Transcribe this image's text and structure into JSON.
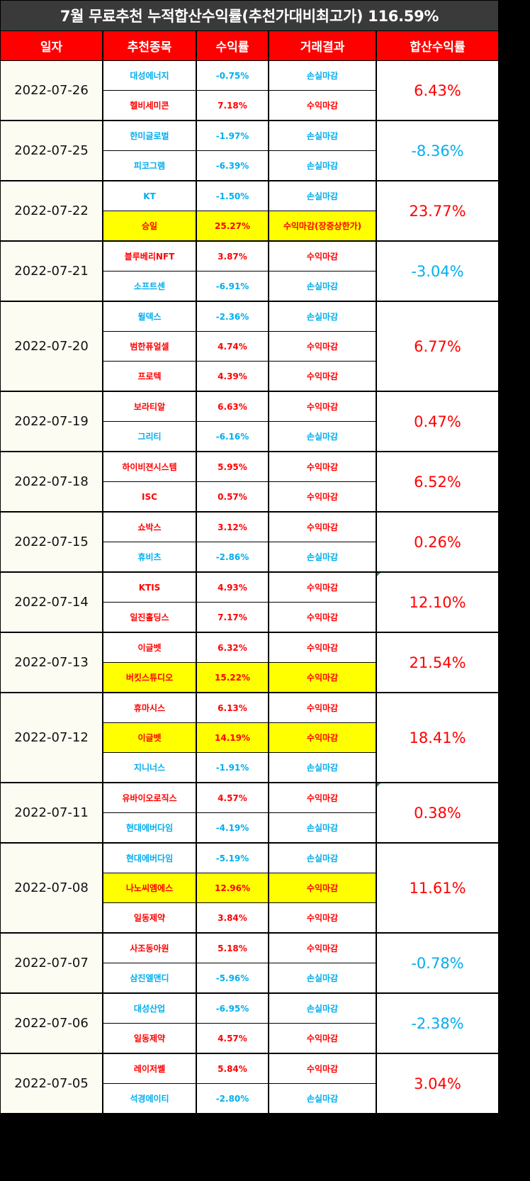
{
  "title": "7월 무료추천 누적합산수익률(추천가대비최고가) 116.59%",
  "headers": [
    "일자",
    "추천종목",
    "수익률",
    "거래결과",
    "합산수익률"
  ],
  "colors": {
    "positive": "#ff0000",
    "negative": "#00aeef",
    "header": "#ff0000",
    "highlight": "#ffff00"
  },
  "groups": [
    {
      "date": "2022-07-26",
      "sum": "6.43%",
      "sum_sign": "pos",
      "rows": [
        {
          "stock": "대성에너지",
          "ret": "-0.75%",
          "result": "손실마감",
          "sign": "neg"
        },
        {
          "stock": "헬비세미콘",
          "ret": "7.18%",
          "result": "수익마감",
          "sign": "pos"
        }
      ]
    },
    {
      "date": "2022-07-25",
      "sum": "-8.36%",
      "sum_sign": "neg",
      "rows": [
        {
          "stock": "한미글로벌",
          "ret": "-1.97%",
          "result": "손실마감",
          "sign": "neg"
        },
        {
          "stock": "피코그램",
          "ret": "-6.39%",
          "result": "손실마감",
          "sign": "neg"
        }
      ]
    },
    {
      "date": "2022-07-22",
      "sum": "23.77%",
      "sum_sign": "pos",
      "rows": [
        {
          "stock": "KT",
          "ret": "-1.50%",
          "result": "손실마감",
          "sign": "neg"
        },
        {
          "stock": "승일",
          "ret": "25.27%",
          "result": "수익마감(장중상한가)",
          "sign": "pos",
          "hl": true
        }
      ]
    },
    {
      "date": "2022-07-21",
      "sum": "-3.04%",
      "sum_sign": "neg",
      "rows": [
        {
          "stock": "블루베리NFT",
          "ret": "3.87%",
          "result": "수익마감",
          "sign": "pos"
        },
        {
          "stock": "소프트센",
          "ret": "-6.91%",
          "result": "손실마감",
          "sign": "neg"
        }
      ]
    },
    {
      "date": "2022-07-20",
      "sum": "6.77%",
      "sum_sign": "pos",
      "rows": [
        {
          "stock": "윌덱스",
          "ret": "-2.36%",
          "result": "손실마감",
          "sign": "neg"
        },
        {
          "stock": "범한퓨얼셀",
          "ret": "4.74%",
          "result": "수익마감",
          "sign": "pos"
        },
        {
          "stock": "프로텍",
          "ret": "4.39%",
          "result": "수익마감",
          "sign": "pos"
        }
      ]
    },
    {
      "date": "2022-07-19",
      "sum": "0.47%",
      "sum_sign": "pos",
      "rows": [
        {
          "stock": "보라티알",
          "ret": "6.63%",
          "result": "수익마감",
          "sign": "pos"
        },
        {
          "stock": "그리티",
          "ret": "-6.16%",
          "result": "손실마감",
          "sign": "neg"
        }
      ]
    },
    {
      "date": "2022-07-18",
      "sum": "6.52%",
      "sum_sign": "pos",
      "rows": [
        {
          "stock": "하이비젼시스템",
          "ret": "5.95%",
          "result": "수익마감",
          "sign": "pos"
        },
        {
          "stock": "ISC",
          "ret": "0.57%",
          "result": "수익마감",
          "sign": "pos"
        }
      ]
    },
    {
      "date": "2022-07-15",
      "sum": "0.26%",
      "sum_sign": "pos",
      "rows": [
        {
          "stock": "쇼박스",
          "ret": "3.12%",
          "result": "수익마감",
          "sign": "pos"
        },
        {
          "stock": "휴비츠",
          "ret": "-2.86%",
          "result": "손실마감",
          "sign": "neg"
        }
      ]
    },
    {
      "date": "2022-07-14",
      "sum": "12.10%",
      "sum_sign": "pos",
      "rows": [
        {
          "stock": "KTIS",
          "ret": "4.93%",
          "result": "수익마감",
          "sign": "pos"
        },
        {
          "stock": "일진홀딩스",
          "ret": "7.17%",
          "result": "수익마감",
          "sign": "pos"
        }
      ]
    },
    {
      "date": "2022-07-13",
      "sum": "21.54%",
      "sum_sign": "pos",
      "rows": [
        {
          "stock": "이글벳",
          "ret": "6.32%",
          "result": "수익마감",
          "sign": "pos"
        },
        {
          "stock": "버킷스튜디오",
          "ret": "15.22%",
          "result": "수익마감",
          "sign": "pos",
          "hl": true
        }
      ]
    },
    {
      "date": "2022-07-12",
      "sum": "18.41%",
      "sum_sign": "pos",
      "rows": [
        {
          "stock": "휴마시스",
          "ret": "6.13%",
          "result": "수익마감",
          "sign": "pos"
        },
        {
          "stock": "이글벳",
          "ret": "14.19%",
          "result": "수익마감",
          "sign": "pos",
          "hl": true
        },
        {
          "stock": "지니너스",
          "ret": "-1.91%",
          "result": "손실마감",
          "sign": "neg"
        }
      ]
    },
    {
      "date": "2022-07-11",
      "sum": "0.38%",
      "sum_sign": "pos",
      "rows": [
        {
          "stock": "유바이오로직스",
          "ret": "4.57%",
          "result": "수익마감",
          "sign": "pos"
        },
        {
          "stock": "현대에버다임",
          "ret": "-4.19%",
          "result": "손실마감",
          "sign": "neg"
        }
      ]
    },
    {
      "date": "2022-07-08",
      "sum": "11.61%",
      "sum_sign": "pos",
      "rows": [
        {
          "stock": "현대에버다임",
          "ret": "-5.19%",
          "result": "손실마감",
          "sign": "neg"
        },
        {
          "stock": "나노씨엠에스",
          "ret": "12.96%",
          "result": "수익마감",
          "sign": "pos",
          "hl": true
        },
        {
          "stock": "일동제약",
          "ret": "3.84%",
          "result": "수익마감",
          "sign": "pos"
        }
      ]
    },
    {
      "date": "2022-07-07",
      "sum": "-0.78%",
      "sum_sign": "neg",
      "rows": [
        {
          "stock": "사조동아원",
          "ret": "5.18%",
          "result": "수익마감",
          "sign": "pos"
        },
        {
          "stock": "삼진엘앤디",
          "ret": "-5.96%",
          "result": "손실마감",
          "sign": "neg"
        }
      ]
    },
    {
      "date": "2022-07-06",
      "sum": "-2.38%",
      "sum_sign": "neg",
      "rows": [
        {
          "stock": "대성산업",
          "ret": "-6.95%",
          "result": "손실마감",
          "sign": "neg"
        },
        {
          "stock": "일동제약",
          "ret": "4.57%",
          "result": "수익마감",
          "sign": "pos"
        }
      ]
    },
    {
      "date": "2022-07-05",
      "sum": "3.04%",
      "sum_sign": "pos",
      "rows": [
        {
          "stock": "레이저쎌",
          "ret": "5.84%",
          "result": "수익마감",
          "sign": "pos"
        },
        {
          "stock": "석경에이티",
          "ret": "-2.80%",
          "result": "손실마감",
          "sign": "neg"
        }
      ]
    }
  ]
}
